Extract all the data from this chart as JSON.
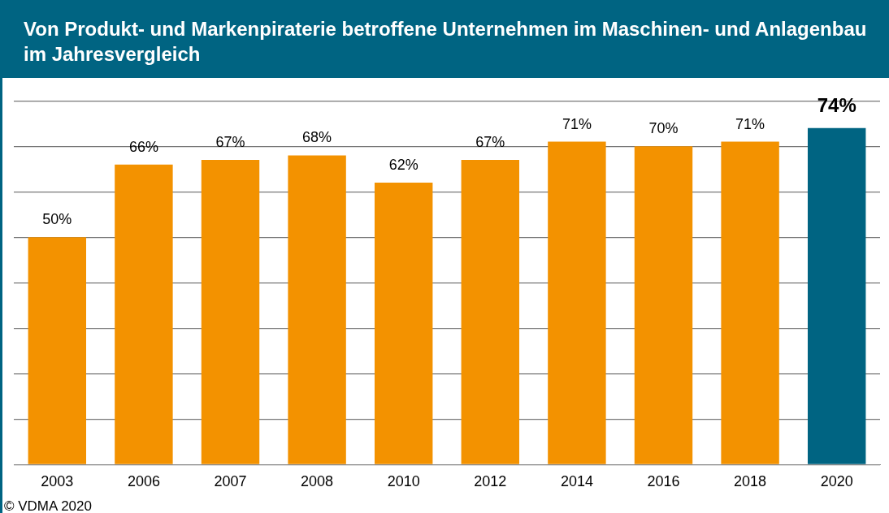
{
  "chart_data": {
    "type": "bar",
    "title": "Von Produkt- und Markenpiraterie betroffene Unternehmen im Maschinen- und Anlagenbau im Jahresvergleich",
    "categories": [
      "2003",
      "2006",
      "2007",
      "2008",
      "2010",
      "2012",
      "2014",
      "2016",
      "2018",
      "2020"
    ],
    "values": [
      50,
      66,
      67,
      68,
      62,
      67,
      71,
      70,
      71,
      74
    ],
    "colors": [
      "#f39200",
      "#f39200",
      "#f39200",
      "#f39200",
      "#f39200",
      "#f39200",
      "#f39200",
      "#f39200",
      "#f39200",
      "#006482"
    ],
    "value_labels": [
      "50%",
      "66%",
      "67%",
      "68%",
      "62%",
      "67%",
      "71%",
      "70%",
      "71%",
      "74%"
    ],
    "ylim": [
      0,
      80
    ],
    "yticks": [
      {
        "value": 0,
        "label": null
      },
      {
        "value": 10,
        "label": null
      },
      {
        "value": 20,
        "label": null
      },
      {
        "value": 30,
        "label": null
      },
      {
        "value": 40,
        "label": null
      },
      {
        "value": 50,
        "label": null
      },
      {
        "value": 60,
        "label": null
      },
      {
        "value": 70,
        "label": null
      },
      {
        "value": 80,
        "label": null
      }
    ],
    "grid": "y",
    "legend": false,
    "annotations": [
      "© VDMA 2020"
    ]
  }
}
